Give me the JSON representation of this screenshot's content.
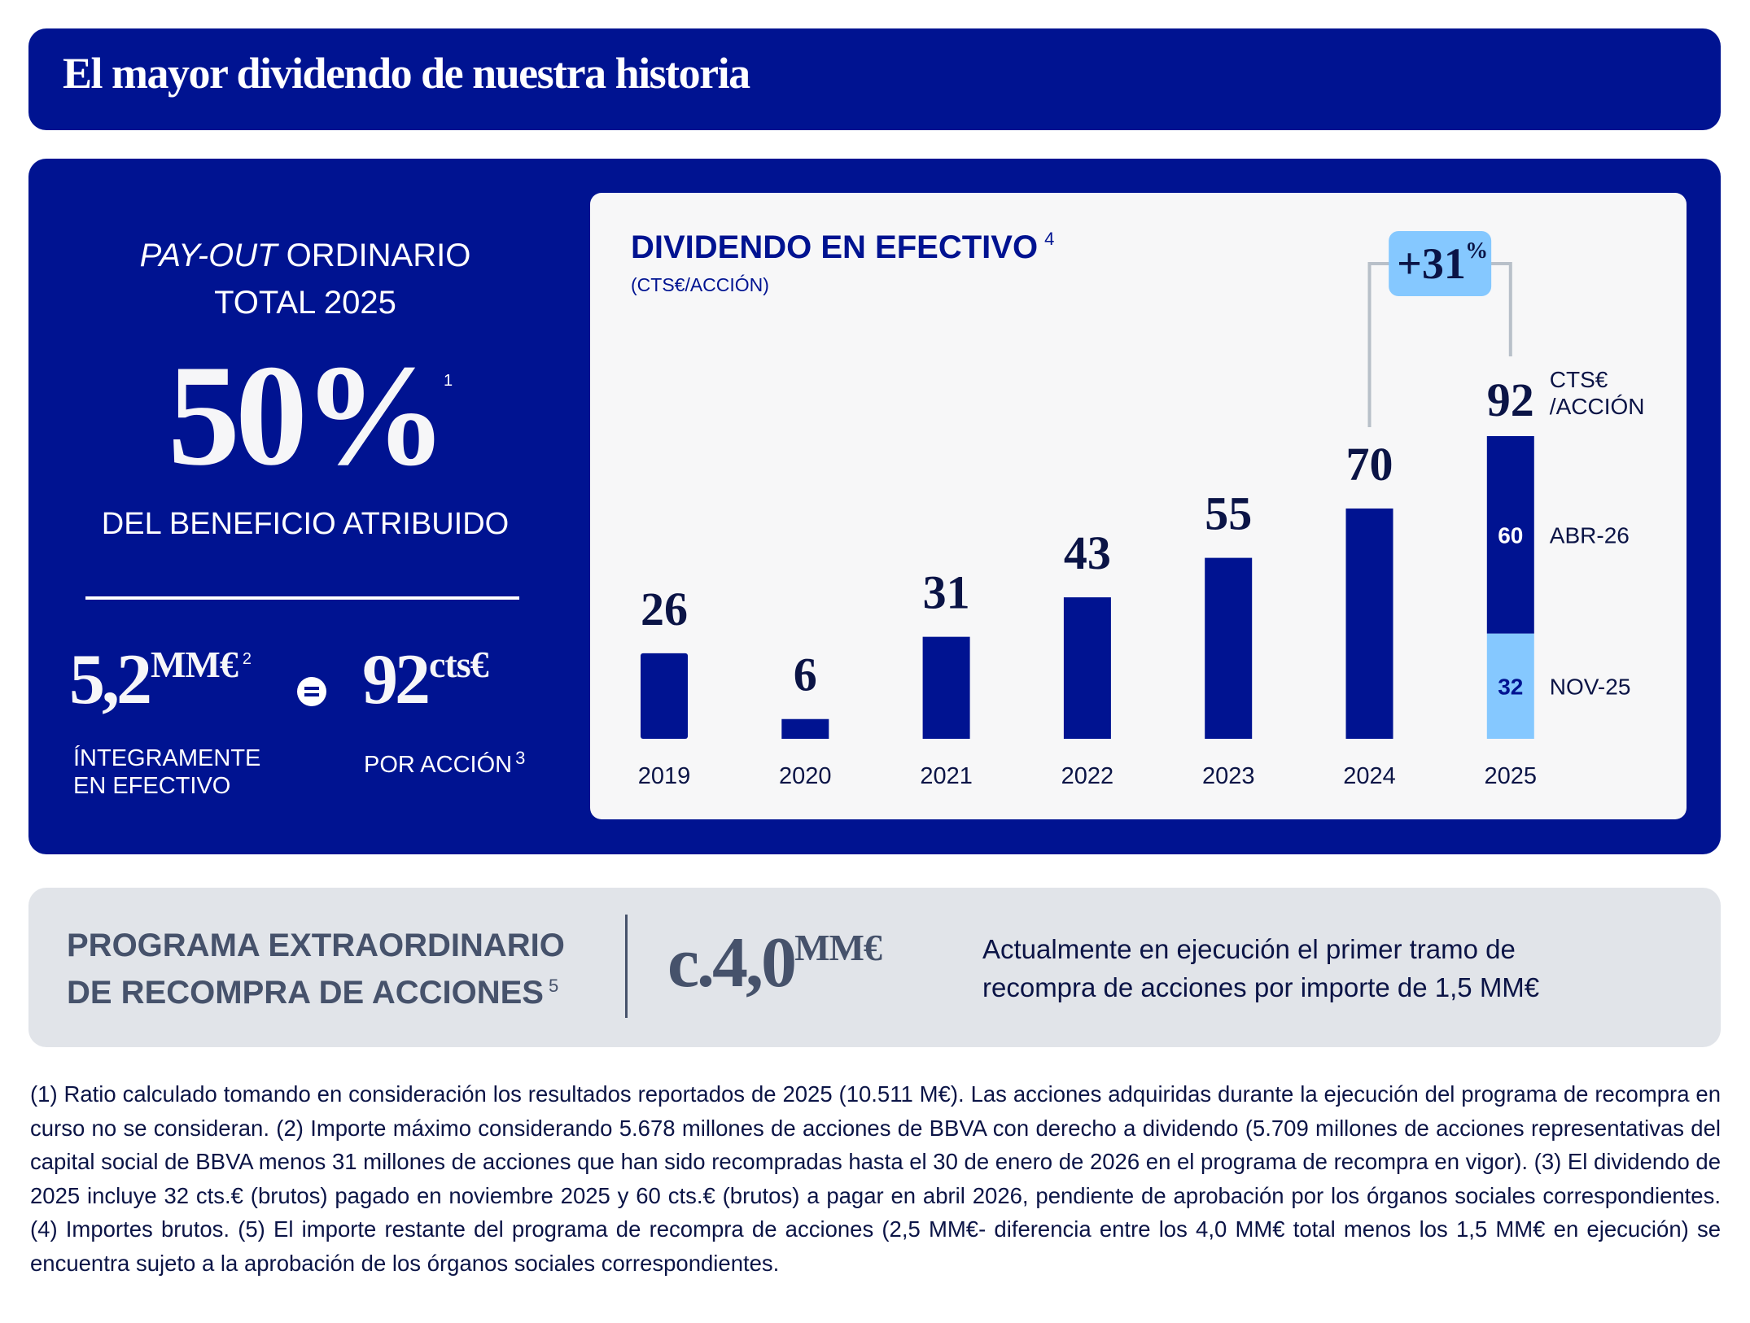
{
  "header": {
    "title": "El mayor dividendo de nuestra historia"
  },
  "payout": {
    "heading_italic": "PAY-OUT",
    "heading_rest": " ORDINARIO",
    "heading_line2": "TOTAL 2025",
    "value": "50%",
    "value_footnote": "1",
    "subtitle": "DEL BENEFICIO ATRIBUIDO"
  },
  "totals": {
    "amount_value": "5,2",
    "amount_unit": "MM€",
    "amount_footnote": "2",
    "amount_caption_line1": "ÍNTEGRAMENTE",
    "amount_caption_line2": "EN EFECTIVO",
    "equals_icon": "equals-circle-icon",
    "per_share_value": "92",
    "per_share_unit": "cts€",
    "per_share_caption": "POR ACCIÓN",
    "per_share_footnote": "3"
  },
  "colors": {
    "brand_navy": "#001391",
    "light_blue": "#85c8ff",
    "text_dark": "#0b1446",
    "card_bg": "#f7f7f8",
    "band_bg": "#e1e4e9",
    "band_text": "#46526b",
    "connector": "#b8c0c9"
  },
  "chart_data": {
    "type": "bar",
    "title": "DIVIDENDO EN EFECTIVO",
    "title_footnote": "4",
    "subtitle": "(CTS€/ACCIÓN)",
    "xlabel": "",
    "ylabel": "cts€/acción",
    "ylim": [
      0,
      92
    ],
    "grid": false,
    "categories": [
      "2019",
      "2020",
      "2021",
      "2022",
      "2023",
      "2024",
      "2025"
    ],
    "values": [
      26,
      6,
      31,
      43,
      55,
      70,
      92
    ],
    "stacked_last": {
      "category": "2025",
      "segments": [
        {
          "name": "NOV-25",
          "value": 32,
          "color": "#85c8ff"
        },
        {
          "name": "ABR-26",
          "value": 60,
          "color": "#001391"
        }
      ],
      "total_unit_line1": "CTS€",
      "total_unit_line2": "/ACCIÓN"
    },
    "growth_annotation": {
      "from": "2024",
      "to": "2025",
      "label": "+31",
      "suffix": "%"
    }
  },
  "buyback": {
    "title_line1": "PROGRAMA EXTRAORDINARIO",
    "title_line2": "DE RECOMPRA DE ACCIONES",
    "title_footnote": "5",
    "value": "c.4,0",
    "unit": "MM€",
    "description_line1": "Actualmente en ejecución el primer tramo de",
    "description_line2": "recompra de acciones por importe de 1,5 MM€"
  },
  "footnotes": "(1) Ratio calculado tomando en consideración los resultados reportados de 2025 (10.511 M€). Las acciones adquiridas durante la ejecución del programa de recompra en curso no se consideran. (2) Importe máximo considerando 5.678 millones de acciones de BBVA con derecho a dividendo (5.709 millones de acciones representativas del capital social de BBVA menos 31 millones de acciones que han sido recompradas hasta el 30 de enero de 2026 en el programa de recompra en vigor). (3) El dividendo de 2025 incluye 32 cts.€ (brutos) pagado en noviembre 2025 y 60 cts.€ (brutos) a pagar en abril 2026, pendiente de aprobación por los órganos sociales  correspondientes. (4) Importes brutos. (5) El importe restante del programa de recompra de acciones (2,5 MM€- diferencia entre los 4,0 MM€ total menos los 1,5 MM€ en ejecución) se encuentra sujeto a la aprobación de los órganos sociales correspondientes."
}
